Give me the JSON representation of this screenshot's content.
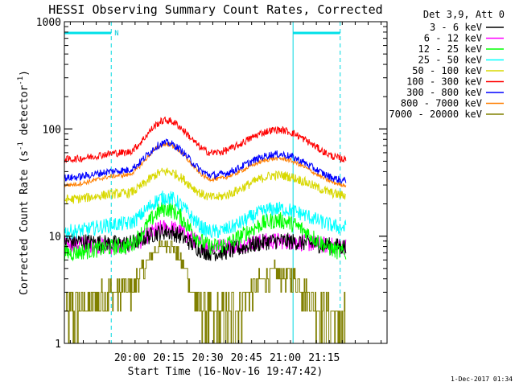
{
  "chart_data": {
    "type": "line",
    "title": "HESSI Observing Summary Count Rates, Corrected",
    "xlabel": "Start Time (16-Nov-16 19:47:42)",
    "ylabel_main": "Corrected Count Rate (s",
    "ylabel_exp1": "-1",
    "ylabel_mid": " detector",
    "ylabel_exp2": "-1",
    "ylabel_end": ")",
    "yscale": "log",
    "ylim": [
      1,
      1000
    ],
    "xlim_minutes": [
      -12.3,
      112.3
    ],
    "x_ticks": [
      {
        "m": 13,
        "label": "20:00"
      },
      {
        "m": 28,
        "label": "20:15"
      },
      {
        "m": 43,
        "label": "20:30"
      },
      {
        "m": 58,
        "label": "20:45"
      },
      {
        "m": 73,
        "label": "21:00"
      },
      {
        "m": 88,
        "label": "21:15"
      }
    ],
    "y_ticks": [
      {
        "v": 1,
        "label": "1"
      },
      {
        "v": 10,
        "label": "10"
      },
      {
        "v": 100,
        "label": "100"
      },
      {
        "v": 1000,
        "label": "1000"
      }
    ],
    "legend_title": "Det 3,9, Att 0",
    "series": [
      {
        "name": "3 - 6 keV",
        "color": "#000000",
        "approx_values": [
          [
            -12,
            9
          ],
          [
            11,
            8.5
          ],
          [
            27,
            11
          ],
          [
            45,
            7
          ],
          [
            70,
            9
          ],
          [
            97,
            8
          ]
        ]
      },
      {
        "name": "6 - 12 keV",
        "color": "#ff00ff",
        "approx_values": [
          [
            -12,
            8.5
          ],
          [
            11,
            8
          ],
          [
            27,
            12
          ],
          [
            45,
            8
          ],
          [
            70,
            9
          ],
          [
            97,
            8
          ]
        ]
      },
      {
        "name": "12 - 25 keV",
        "color": "#00ff00",
        "approx_values": [
          [
            -12,
            7
          ],
          [
            11,
            8
          ],
          [
            27,
            18
          ],
          [
            45,
            8
          ],
          [
            70,
            14
          ],
          [
            97,
            7
          ]
        ]
      },
      {
        "name": "25 - 50 keV",
        "color": "#00ffff",
        "approx_values": [
          [
            -12,
            11
          ],
          [
            11,
            13
          ],
          [
            27,
            23
          ],
          [
            45,
            11
          ],
          [
            70,
            18
          ],
          [
            97,
            12
          ]
        ]
      },
      {
        "name": "50 - 100 keV",
        "color": "#d8d800",
        "approx_values": [
          [
            -12,
            22
          ],
          [
            11,
            25
          ],
          [
            27,
            40
          ],
          [
            45,
            23
          ],
          [
            70,
            37
          ],
          [
            97,
            24
          ]
        ]
      },
      {
        "name": "100 - 300 keV",
        "color": "#ff0000",
        "approx_values": [
          [
            -12,
            52
          ],
          [
            11,
            60
          ],
          [
            27,
            120
          ],
          [
            45,
            60
          ],
          [
            70,
            98
          ],
          [
            97,
            52
          ]
        ]
      },
      {
        "name": "300 - 800 keV",
        "color": "#0000ff",
        "approx_values": [
          [
            -12,
            35
          ],
          [
            11,
            41
          ],
          [
            27,
            74
          ],
          [
            45,
            37
          ],
          [
            70,
            58
          ],
          [
            97,
            33
          ]
        ]
      },
      {
        "name": "800 - 7000 keV",
        "color": "#ff7f00",
        "approx_values": [
          [
            -12,
            30
          ],
          [
            11,
            37
          ],
          [
            27,
            72
          ],
          [
            45,
            34
          ],
          [
            70,
            53
          ],
          [
            97,
            30
          ]
        ]
      },
      {
        "name": "7000 - 20000 keV",
        "color": "#808000",
        "approx_values": [
          [
            -12,
            2
          ],
          [
            11,
            3.2
          ],
          [
            27,
            8.5
          ],
          [
            45,
            1.6
          ],
          [
            70,
            4.5
          ],
          [
            97,
            1.5
          ]
        ]
      }
    ],
    "attenuator_bars_minutes": [
      [
        -12.3,
        5.8
      ],
      [
        76.0,
        94.2
      ]
    ],
    "night_marker_minutes": 5.8,
    "night_label": "N",
    "markers_dashed_minutes": [
      5.8,
      94.2
    ],
    "markers_solid_minutes": [
      76.0
    ],
    "footer_timestamp": "1-Dec-2017 01:34"
  }
}
